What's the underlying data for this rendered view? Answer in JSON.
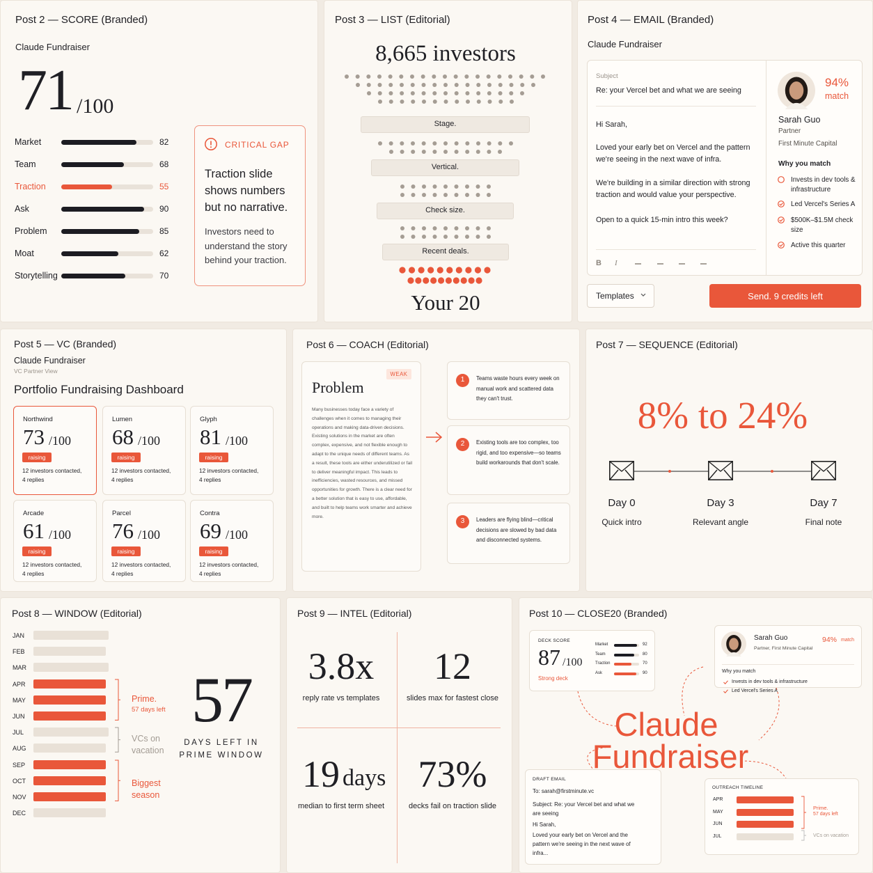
{
  "score": {
    "heading": "Post 2 — SCORE (Branded)",
    "brand": "Claude Fundraiser",
    "score": 71,
    "out_of": "/100",
    "xlim": [
      0,
      100
    ],
    "rows": [
      {
        "label": "Market",
        "value": 82,
        "color": "#1c1c22"
      },
      {
        "label": "Team",
        "value": 68,
        "color": "#1c1c22"
      },
      {
        "label": "Traction",
        "value": 55,
        "color": "#e9573a"
      },
      {
        "label": "Ask",
        "value": 90,
        "color": "#1c1c22"
      },
      {
        "label": "Problem",
        "value": 85,
        "color": "#1c1c22"
      },
      {
        "label": "Moat",
        "value": 62,
        "color": "#1c1c22"
      },
      {
        "label": "Storytelling",
        "value": 70,
        "color": "#1c1c22"
      }
    ],
    "gap": {
      "tag": "CRITICAL GAP",
      "headline": "Traction slide shows numbers but no narrative.",
      "body": "Investors need to understand the story behind your traction."
    }
  },
  "list": {
    "heading": "Post 3 — LIST (Editorial)",
    "title": "8,665 investors",
    "stages": [
      "Stage.",
      "Vertical.",
      "Check size.",
      "Recent deals."
    ],
    "result": "Your 20"
  },
  "email": {
    "heading": "Post 4 — EMAIL (Branded)",
    "brand": "Claude Fundraiser",
    "subject_label": "Subject",
    "subject": "Re: your Vercel bet and what we are seeing",
    "body": [
      "Hi Sarah,",
      "Loved your early bet on Vercel and the pattern we're seeing in the next wave of infra.",
      "We're building in a similar direction with strong traction and would value your perspective.",
      "Open to a quick 15-min intro this week?"
    ],
    "toolbar": [
      "B",
      "I"
    ],
    "match": "94%",
    "match_label": "match",
    "name": "Sarah Guo",
    "role": "Partner",
    "firm": "First Minute Capital",
    "why_title": "Why you match",
    "reasons": [
      "Invests in dev tools & infrastructure",
      "Led Vercel's Series A",
      "$500K–$1.5M check size",
      "Active this quarter"
    ],
    "templates": "Templates",
    "send": "Send. 9 credits left"
  },
  "vc": {
    "heading": "Post 5 — VC (Branded)",
    "brand": "Claude Fundraiser",
    "subtitle": "VC Partner View",
    "title": "Portfolio Fundraising Dashboard",
    "out_of": "/100",
    "cards": [
      {
        "name": "Northwind",
        "score": 73,
        "status": "raising",
        "contacted": "12 investors contacted,",
        "replies": "4 replies",
        "selected": true
      },
      {
        "name": "Lumen",
        "score": 68,
        "status": "raising",
        "contacted": "12 investors contacted,",
        "replies": "4 replies",
        "selected": false
      },
      {
        "name": "Glyph",
        "score": 81,
        "status": "raising",
        "contacted": "12 investors contacted,",
        "replies": "4 replies",
        "selected": false
      },
      {
        "name": "Arcade",
        "score": 61,
        "status": "raising",
        "contacted": "12 investors contacted,",
        "replies": "4 replies",
        "selected": false
      },
      {
        "name": "Parcel",
        "score": 76,
        "status": "raising",
        "contacted": "12 investors contacted,",
        "replies": "4 replies",
        "selected": false
      },
      {
        "name": "Contra",
        "score": 69,
        "status": "raising",
        "contacted": "12 investors contacted,",
        "replies": "4 replies",
        "selected": false
      }
    ]
  },
  "coach": {
    "heading": "Post 6 — COACH (Editorial)",
    "slide_title": "Problem",
    "badge": "WEAK",
    "paragraph": "Many businesses today face a variety of challenges when it comes to managing their operations and making data-driven decisions. Existing solutions in the market are often complex, expensive, and not flexible enough to adapt to the unique needs of different teams. As a result, these tools are either underutilized or fail to deliver meaningful impact. This leads to inefficiencies, wasted resources, and missed opportunities for growth. There is a clear need for a better solution that is easy to use, affordable, and built to help teams work smarter and achieve more.",
    "issues": [
      {
        "number": "1",
        "text": "Teams waste hours every week on manual work and scattered data they can't trust."
      },
      {
        "number": "2",
        "text": "Existing tools are too complex, too rigid, and too expensive—so teams build workarounds that don't scale."
      },
      {
        "number": "3",
        "text": "Leaders are flying blind—critical decisions are slowed by bad data and disconnected systems."
      }
    ]
  },
  "sequence": {
    "heading": "Post 7 — SEQUENCE (Editorial)",
    "headline": "8% to 24%",
    "steps": [
      {
        "day": "Day 0",
        "label": "Quick intro"
      },
      {
        "day": "Day 3",
        "label": "Relevant angle"
      },
      {
        "day": "Day 7",
        "label": "Final note"
      }
    ]
  },
  "window": {
    "heading": "Post 8 — WINDOW (Editorial)",
    "months": [
      {
        "name": "JAN",
        "highlight": false
      },
      {
        "name": "FEB",
        "highlight": false
      },
      {
        "name": "MAR",
        "highlight": false
      },
      {
        "name": "APR",
        "highlight": true
      },
      {
        "name": "MAY",
        "highlight": true
      },
      {
        "name": "JUN",
        "highlight": true
      },
      {
        "name": "JUL",
        "highlight": false
      },
      {
        "name": "AUG",
        "highlight": false
      },
      {
        "name": "SEP",
        "highlight": true
      },
      {
        "name": "OCT",
        "highlight": true
      },
      {
        "name": "NOV",
        "highlight": true
      },
      {
        "name": "DEC",
        "highlight": false
      }
    ],
    "groups": [
      {
        "title": "Prime.",
        "note": "57 days left",
        "color": "#e9573a"
      },
      {
        "title": "VCs on vacation",
        "color": "#a39c94"
      },
      {
        "title": "Biggest season",
        "color": "#e9573a"
      }
    ],
    "big_number": "57",
    "caption": "DAYS LEFT IN PRIME WINDOW"
  },
  "intel": {
    "heading": "Post 9 — INTEL (Editorial)",
    "stats": [
      {
        "value": "3.8x",
        "label": "reply rate vs templates"
      },
      {
        "value": "12",
        "label": "slides max for fastest close"
      },
      {
        "value": "19",
        "unit": "days",
        "label": "median to first term sheet"
      },
      {
        "value": "73%",
        "label": "decks fail on traction slide"
      }
    ]
  },
  "close": {
    "heading": "Post 10 — CLOSE20 (Branded)",
    "deck": {
      "label": "DECK SCORE",
      "score": 87,
      "out_of": "/100",
      "verdict": "Strong deck",
      "xlim": [
        0,
        100
      ],
      "rows": [
        {
          "label": "Market",
          "value": 92,
          "color": "#1c1c22"
        },
        {
          "label": "Team",
          "value": 80,
          "color": "#1c1c22"
        },
        {
          "label": "Traction",
          "value": 70,
          "color": "#e9573a"
        },
        {
          "label": "Ask",
          "value": 90,
          "color": "#e9573a"
        }
      ]
    },
    "person": {
      "name": "Sarah Guo",
      "match": "94%",
      "match_label": "match",
      "role": "Partner, First Minute Capital",
      "why_title": "Why you match",
      "reasons": [
        "Invests in dev tools & infrastructure",
        "Led Vercel's Series A"
      ]
    },
    "brand_lines": [
      "Claude",
      "Fundraiser"
    ],
    "draft": {
      "label": "DRAFT EMAIL",
      "to": "To: sarah@firstminute.vc",
      "subject": "Subject: Re: your Vercel bet and what we are seeing",
      "greeting": "Hi Sarah,",
      "body": "Loved your early bet on Vercel and the pattern we're seeing in the next wave of infra..."
    },
    "timeline": {
      "label": "OUTREACH TIMELINE",
      "months": [
        {
          "name": "APR",
          "highlight": true
        },
        {
          "name": "MAY",
          "highlight": true
        },
        {
          "name": "JUN",
          "highlight": true
        },
        {
          "name": "JUL",
          "highlight": false
        }
      ],
      "prime": "Prime.",
      "prime_note": "57 days left",
      "vacation": "VCs on vacation"
    }
  }
}
